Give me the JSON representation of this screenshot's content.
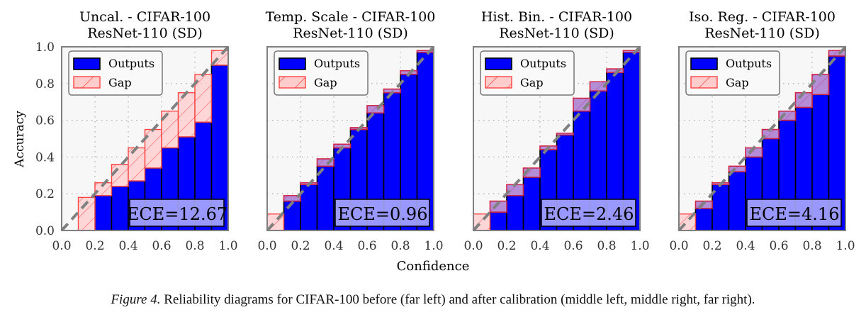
{
  "figure": {
    "caption_lead": "Figure 4.",
    "caption_text": " Reliability diagrams for CIFAR-100 before (far left) and after calibration (middle left, middle right, far right).",
    "shared_xlabel": "Confidence",
    "shared_ylabel": "Accuracy",
    "colors": {
      "outputs_fill": "#0000ff",
      "outputs_edge": "#000000",
      "gap_fill": "#ffcccc",
      "gap_edge": "#ff4444",
      "diagonal": "#808080",
      "plot_bg": "#f7f7f7",
      "ece_box": "#b3b3ff"
    }
  },
  "chart_data": [
    {
      "type": "bar",
      "title_line1": "Uncal. - CIFAR-100",
      "title_line2": "ResNet-110 (SD)",
      "xlabel": "Confidence",
      "ylabel": "Accuracy",
      "xlim": [
        0,
        1
      ],
      "ylim": [
        0,
        1
      ],
      "xticks": [
        "0.0",
        "0.2",
        "0.4",
        "0.6",
        "0.8",
        "1.0"
      ],
      "yticks": [
        "0.0",
        "0.2",
        "0.4",
        "0.6",
        "0.8",
        "1.0"
      ],
      "grid": true,
      "legend": [
        "Outputs",
        "Gap"
      ],
      "legend_position": "top-left",
      "bins": [
        0.0,
        0.1,
        0.2,
        0.3,
        0.4,
        0.5,
        0.6,
        0.7,
        0.8,
        0.9
      ],
      "series": [
        {
          "name": "Outputs",
          "values": [
            0.0,
            0.0,
            0.19,
            0.24,
            0.27,
            0.34,
            0.45,
            0.51,
            0.59,
            0.9
          ]
        },
        {
          "name": "Gap",
          "values": [
            0.0,
            0.18,
            0.26,
            0.36,
            0.45,
            0.55,
            0.65,
            0.75,
            0.85,
            0.98
          ]
        }
      ],
      "annotation": "ECE=12.67"
    },
    {
      "type": "bar",
      "title_line1": "Temp. Scale - CIFAR-100",
      "title_line2": "ResNet-110 (SD)",
      "xlabel": "Confidence",
      "ylabel": "Accuracy",
      "xlim": [
        0,
        1
      ],
      "ylim": [
        0,
        1
      ],
      "xticks": [
        "0.0",
        "0.2",
        "0.4",
        "0.6",
        "0.8",
        "1.0"
      ],
      "yticks": [
        "0.0",
        "0.2",
        "0.4",
        "0.6",
        "0.8",
        "1.0"
      ],
      "grid": true,
      "legend": [
        "Outputs",
        "Gap"
      ],
      "legend_position": "top-left",
      "bins": [
        0.0,
        0.1,
        0.2,
        0.3,
        0.4,
        0.5,
        0.6,
        0.7,
        0.8,
        0.9
      ],
      "series": [
        {
          "name": "Outputs",
          "values": [
            0.0,
            0.16,
            0.25,
            0.35,
            0.45,
            0.55,
            0.64,
            0.75,
            0.85,
            0.97
          ]
        },
        {
          "name": "Gap",
          "values": [
            0.09,
            0.19,
            0.26,
            0.39,
            0.47,
            0.56,
            0.68,
            0.77,
            0.87,
            0.98
          ]
        }
      ],
      "annotation": "ECE=0.96"
    },
    {
      "type": "bar",
      "title_line1": "Hist. Bin. - CIFAR-100",
      "title_line2": "ResNet-110 (SD)",
      "xlabel": "Confidence",
      "ylabel": "Accuracy",
      "xlim": [
        0,
        1
      ],
      "ylim": [
        0,
        1
      ],
      "xticks": [
        "0.0",
        "0.2",
        "0.4",
        "0.6",
        "0.8",
        "1.0"
      ],
      "yticks": [
        "0.0",
        "0.2",
        "0.4",
        "0.6",
        "0.8",
        "1.0"
      ],
      "grid": true,
      "legend": [
        "Outputs",
        "Gap"
      ],
      "legend_position": "top-left",
      "bins": [
        0.0,
        0.1,
        0.2,
        0.3,
        0.4,
        0.5,
        0.6,
        0.7,
        0.8,
        0.9
      ],
      "series": [
        {
          "name": "Outputs",
          "values": [
            0.0,
            0.1,
            0.19,
            0.29,
            0.44,
            0.52,
            0.65,
            0.76,
            0.86,
            0.97
          ]
        },
        {
          "name": "Gap",
          "values": [
            0.09,
            0.16,
            0.25,
            0.34,
            0.46,
            0.53,
            0.72,
            0.81,
            0.88,
            0.98
          ]
        }
      ],
      "annotation": "ECE=2.46"
    },
    {
      "type": "bar",
      "title_line1": "Iso. Reg. - CIFAR-100",
      "title_line2": "ResNet-110 (SD)",
      "xlabel": "Confidence",
      "ylabel": "Accuracy",
      "xlim": [
        0,
        1
      ],
      "ylim": [
        0,
        1
      ],
      "xticks": [
        "0.0",
        "0.2",
        "0.4",
        "0.6",
        "0.8",
        "1.0"
      ],
      "yticks": [
        "0.0",
        "0.2",
        "0.4",
        "0.6",
        "0.8",
        "1.0"
      ],
      "grid": true,
      "legend": [
        "Outputs",
        "Gap"
      ],
      "legend_position": "top-left",
      "bins": [
        0.0,
        0.1,
        0.2,
        0.3,
        0.4,
        0.5,
        0.6,
        0.7,
        0.8,
        0.9
      ],
      "series": [
        {
          "name": "Outputs",
          "values": [
            0.0,
            0.12,
            0.25,
            0.32,
            0.4,
            0.5,
            0.6,
            0.67,
            0.74,
            0.95
          ]
        },
        {
          "name": "Gap",
          "values": [
            0.09,
            0.16,
            0.26,
            0.35,
            0.45,
            0.55,
            0.65,
            0.75,
            0.85,
            0.98
          ]
        }
      ],
      "annotation": "ECE=4.16"
    }
  ]
}
